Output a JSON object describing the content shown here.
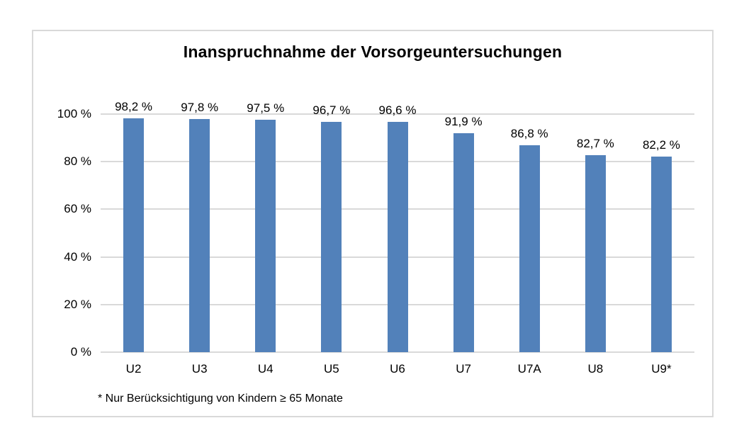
{
  "chart_data": {
    "type": "bar",
    "title": "Inanspruchnahme der Vorsorgeuntersuchungen",
    "categories": [
      "U2",
      "U3",
      "U4",
      "U5",
      "U6",
      "U7",
      "U7A",
      "U8",
      "U9*"
    ],
    "values": [
      98.2,
      97.8,
      97.5,
      96.7,
      96.6,
      91.9,
      86.8,
      82.7,
      82.2
    ],
    "value_labels": [
      "98,2 %",
      "97,8 %",
      "97,5 %",
      "96,7 %",
      "96,6 %",
      "91,9 %",
      "86,8 %",
      "82,7 %",
      "82,2 %"
    ],
    "xlabel": "",
    "ylabel": "",
    "ylim": [
      0,
      100
    ],
    "yticks": [
      0,
      20,
      40,
      60,
      80,
      100
    ],
    "ytick_labels": [
      "0 %",
      "20 %",
      "40 %",
      "60 %",
      "80 %",
      "100 %"
    ],
    "grid": "horizontal",
    "legend": "none",
    "bar_color": "#5281BA",
    "gridline_color": "#D9D9D9",
    "axis_color": "#D9D9D9",
    "frame_border_color": "#D9D9D9",
    "footnote": "* Nur Berücksichtigung von Kindern ≥ 65 Monate"
  }
}
